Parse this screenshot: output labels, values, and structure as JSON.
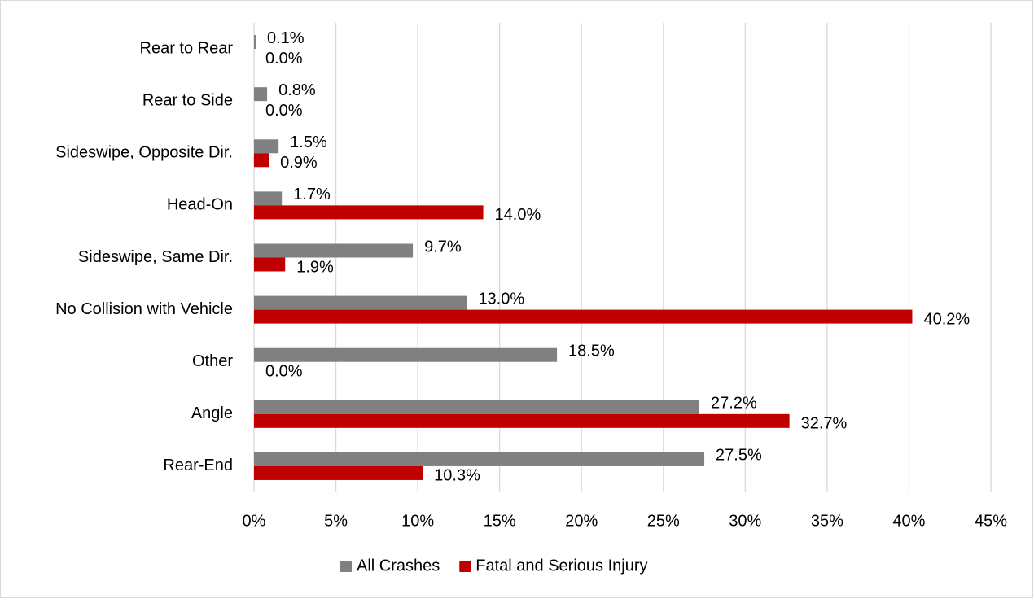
{
  "chart_data": {
    "type": "bar",
    "orientation": "horizontal",
    "categories": [
      "Rear to Rear",
      "Rear to Side",
      "Sideswipe, Opposite Dir.",
      "Head-On",
      "Sideswipe, Same Dir.",
      "No Collision with Vehicle",
      "Other",
      "Angle",
      "Rear-End"
    ],
    "series": [
      {
        "name": "All Crashes",
        "color": "#808080",
        "values": [
          0.1,
          0.8,
          1.5,
          1.7,
          9.7,
          13.0,
          18.5,
          27.2,
          27.5
        ],
        "value_labels": [
          "0.1%",
          "0.8%",
          "1.5%",
          "1.7%",
          "9.7%",
          "13.0%",
          "18.5%",
          "27.2%",
          "27.5%"
        ]
      },
      {
        "name": "Fatal and Serious Injury",
        "color": "#c00000",
        "values": [
          0.0,
          0.0,
          0.9,
          14.0,
          1.9,
          40.2,
          0.0,
          32.7,
          10.3
        ],
        "value_labels": [
          "0.0%",
          "0.0%",
          "0.9%",
          "14.0%",
          "1.9%",
          "40.2%",
          "0.0%",
          "32.7%",
          "10.3%"
        ]
      }
    ],
    "xlim": [
      0,
      45
    ],
    "xticks": [
      {
        "value": 0,
        "label": "0%"
      },
      {
        "value": 5,
        "label": "5%"
      },
      {
        "value": 10,
        "label": "10%"
      },
      {
        "value": 15,
        "label": "15%"
      },
      {
        "value": 20,
        "label": "20%"
      },
      {
        "value": 25,
        "label": "25%"
      },
      {
        "value": 30,
        "label": "30%"
      },
      {
        "value": 35,
        "label": "35%"
      },
      {
        "value": 40,
        "label": "40%"
      },
      {
        "value": 45,
        "label": "45%"
      }
    ],
    "grid": true,
    "legend": "bottom"
  }
}
